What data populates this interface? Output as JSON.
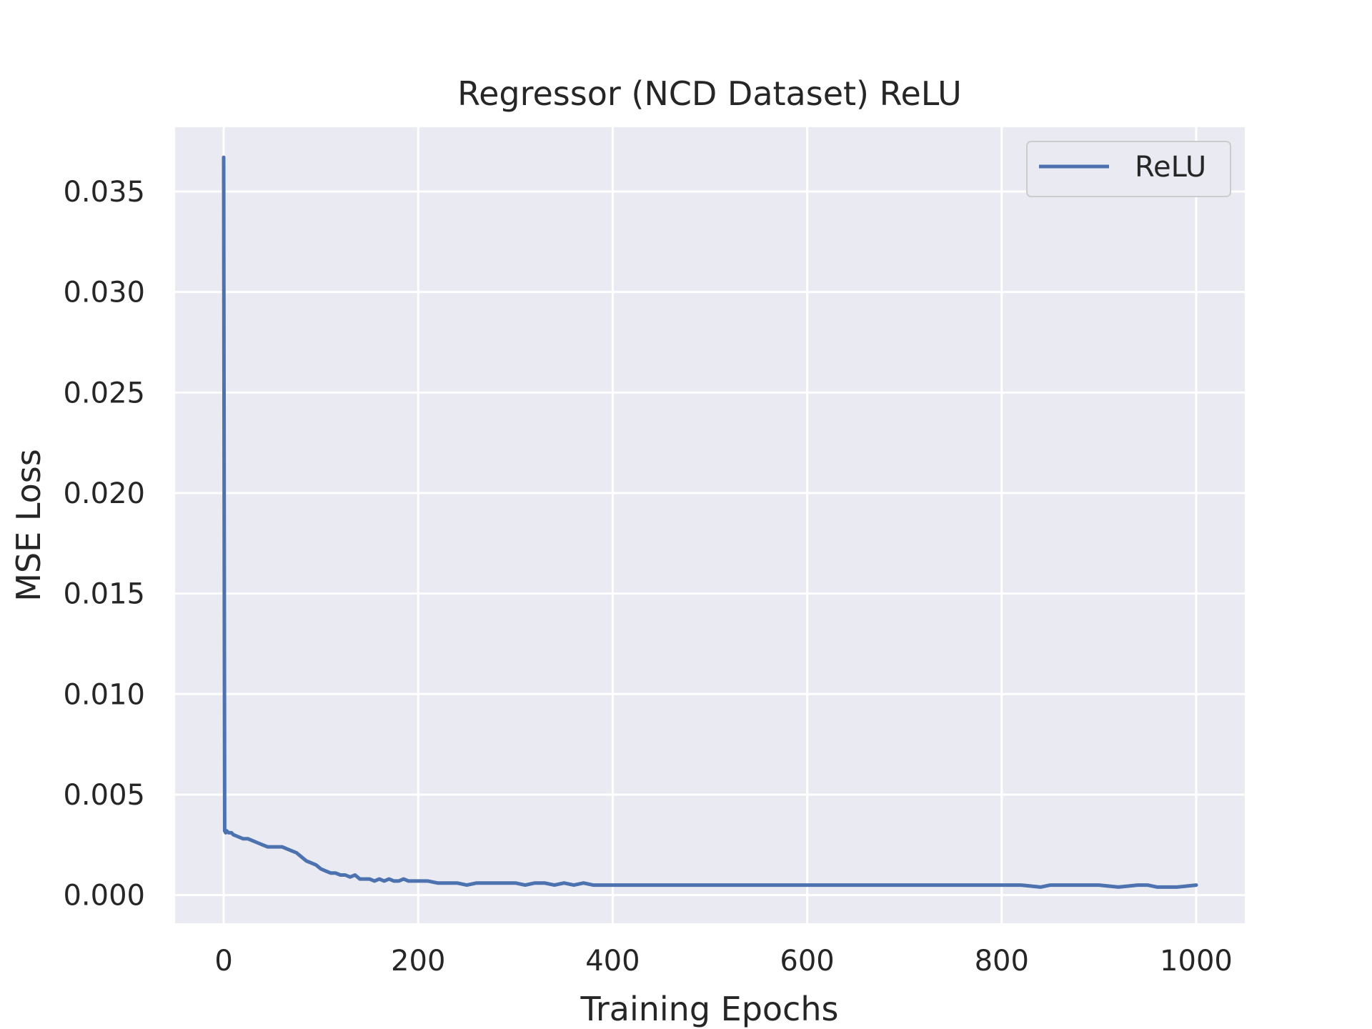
{
  "chart_data": {
    "type": "line",
    "title": "Regressor (NCD Dataset) ReLU",
    "xlabel": "Training Epochs",
    "ylabel": "MSE Loss",
    "xlim": [
      -50,
      1050
    ],
    "ylim": [
      -0.0014,
      0.0382
    ],
    "xticks": [
      0,
      200,
      400,
      600,
      800,
      1000
    ],
    "xtick_labels": [
      "0",
      "200",
      "400",
      "600",
      "800",
      "1000"
    ],
    "yticks": [
      0.0,
      0.005,
      0.01,
      0.015,
      0.02,
      0.025,
      0.03,
      0.035
    ],
    "ytick_labels": [
      "0.000",
      "0.005",
      "0.010",
      "0.015",
      "0.020",
      "0.025",
      "0.030",
      "0.035"
    ],
    "grid": true,
    "legend": "top-right",
    "background": "#EAEAF2",
    "gridColor": "#FFFFFF",
    "series": [
      {
        "name": "ReLU",
        "color": "#4C72B0",
        "x": [
          0,
          1,
          2,
          3,
          5,
          8,
          10,
          15,
          20,
          25,
          30,
          35,
          40,
          45,
          50,
          55,
          60,
          65,
          70,
          75,
          80,
          85,
          90,
          95,
          100,
          105,
          110,
          115,
          120,
          125,
          130,
          135,
          140,
          145,
          150,
          155,
          160,
          165,
          170,
          175,
          180,
          185,
          190,
          195,
          200,
          210,
          220,
          230,
          240,
          250,
          260,
          270,
          280,
          290,
          300,
          310,
          320,
          330,
          340,
          350,
          360,
          370,
          380,
          390,
          400,
          420,
          440,
          460,
          480,
          500,
          520,
          540,
          560,
          580,
          600,
          620,
          640,
          660,
          680,
          700,
          720,
          740,
          760,
          780,
          800,
          820,
          840,
          850,
          860,
          880,
          900,
          920,
          940,
          950,
          960,
          980,
          1000
        ],
        "y": [
          0.0367,
          0.0032,
          0.0031,
          0.0032,
          0.0031,
          0.0031,
          0.003,
          0.0029,
          0.0028,
          0.0028,
          0.0027,
          0.0026,
          0.0025,
          0.0024,
          0.0024,
          0.0024,
          0.0024,
          0.0023,
          0.0022,
          0.0021,
          0.0019,
          0.0017,
          0.0016,
          0.0015,
          0.0013,
          0.0012,
          0.0011,
          0.0011,
          0.001,
          0.001,
          0.0009,
          0.001,
          0.0008,
          0.0008,
          0.0008,
          0.0007,
          0.0008,
          0.0007,
          0.0008,
          0.0007,
          0.0007,
          0.0008,
          0.0007,
          0.0007,
          0.0007,
          0.0007,
          0.0006,
          0.0006,
          0.0006,
          0.0005,
          0.0006,
          0.0006,
          0.0006,
          0.0006,
          0.0006,
          0.0005,
          0.0006,
          0.0006,
          0.0005,
          0.0006,
          0.0005,
          0.0006,
          0.0005,
          0.0005,
          0.0005,
          0.0005,
          0.0005,
          0.0005,
          0.0005,
          0.0005,
          0.0005,
          0.0005,
          0.0005,
          0.0005,
          0.0005,
          0.0005,
          0.0005,
          0.0005,
          0.0005,
          0.0005,
          0.0005,
          0.0005,
          0.0005,
          0.0005,
          0.0005,
          0.0005,
          0.0004,
          0.0005,
          0.0005,
          0.0005,
          0.0005,
          0.0004,
          0.0005,
          0.0005,
          0.0004,
          0.0004,
          0.0005
        ]
      }
    ]
  }
}
